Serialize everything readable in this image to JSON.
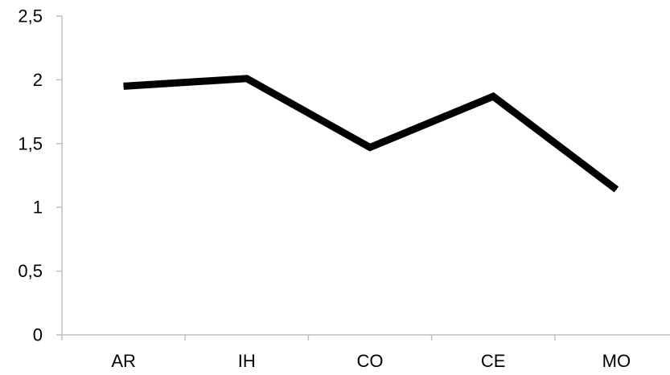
{
  "chart_data": {
    "type": "line",
    "title": "",
    "xlabel": "",
    "ylabel": "",
    "categories": [
      "AR",
      "IH",
      "CO",
      "CE",
      "MO"
    ],
    "series": [
      {
        "values": [
          1.95,
          2.01,
          1.47,
          1.87,
          1.14
        ]
      }
    ],
    "ylim": [
      0,
      2.5
    ],
    "yticks": [
      0,
      0.5,
      1,
      1.5,
      2,
      2.5
    ],
    "ytick_labels": [
      "0",
      "0,5",
      "1",
      "1,5",
      "2",
      "2,5"
    ],
    "grid": false,
    "legend": "none",
    "line_color": "#000000"
  }
}
